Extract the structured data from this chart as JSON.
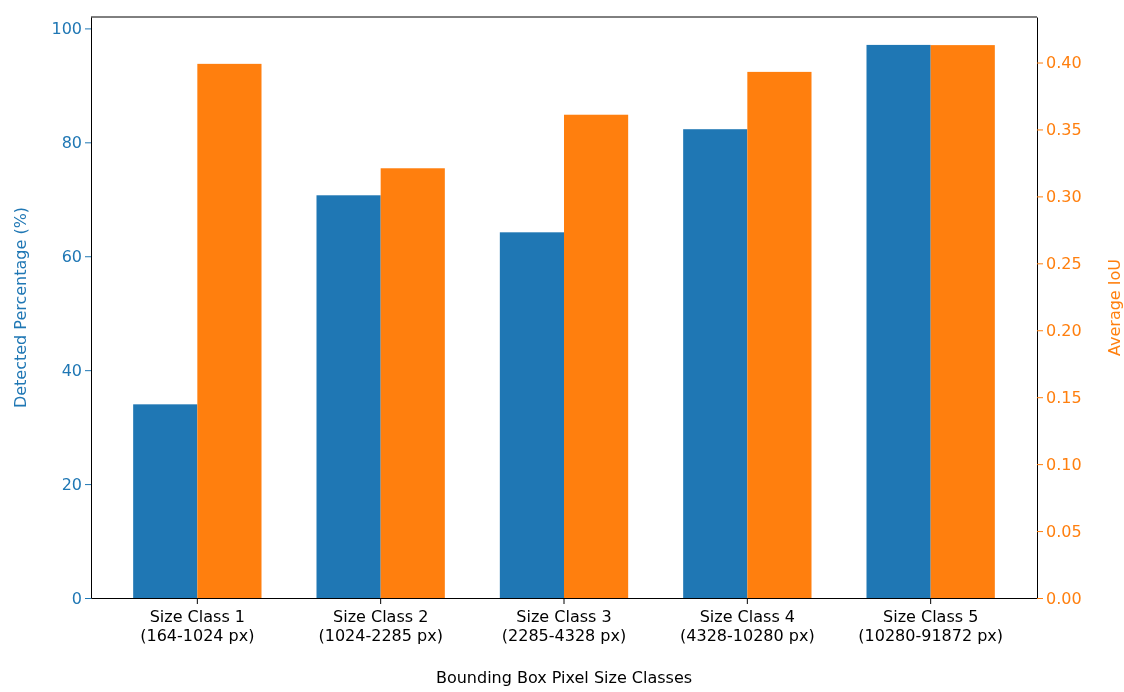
{
  "chart_data": {
    "type": "bar",
    "xlabel": "Bounding Box Pixel Size Classes",
    "ylabel": "Detected Percentage (%)",
    "y2label": "Average IoU",
    "categories": [
      "Size Class 1\n(164-1024 px)",
      "Size Class 2\n(1024-2285 px)",
      "Size Class 3\n(2285-4328 px)",
      "Size Class 4\n(4328-10280 px)",
      "Size Class 5\n(10280-91872 px)"
    ],
    "series": [
      {
        "color": "#1f77b4",
        "values": [
          34.0,
          70.7,
          64.2,
          82.3,
          97.1
        ]
      },
      {
        "color": "#ff7f0e",
        "axis": "y2",
        "values": [
          0.399,
          0.321,
          0.361,
          0.393,
          0.413
        ]
      }
    ],
    "ylim": [
      0,
      102
    ],
    "yticks": [
      0,
      20,
      40,
      60,
      80,
      100
    ],
    "y2lim": [
      0,
      0.434
    ],
    "y2ticks": [
      {
        "value": 0,
        "label": "0.00"
      },
      {
        "value": 0.05,
        "label": "0.05"
      },
      {
        "value": 0.1,
        "label": "0.10"
      },
      {
        "value": 0.15,
        "label": "0.15"
      },
      {
        "value": 0.2,
        "label": "0.20"
      },
      {
        "value": 0.25,
        "label": "0.25"
      },
      {
        "value": 0.3,
        "label": "0.30"
      },
      {
        "value": 0.35,
        "label": "0.35"
      },
      {
        "value": 0.4,
        "label": "0.40"
      }
    ],
    "grid": false
  }
}
